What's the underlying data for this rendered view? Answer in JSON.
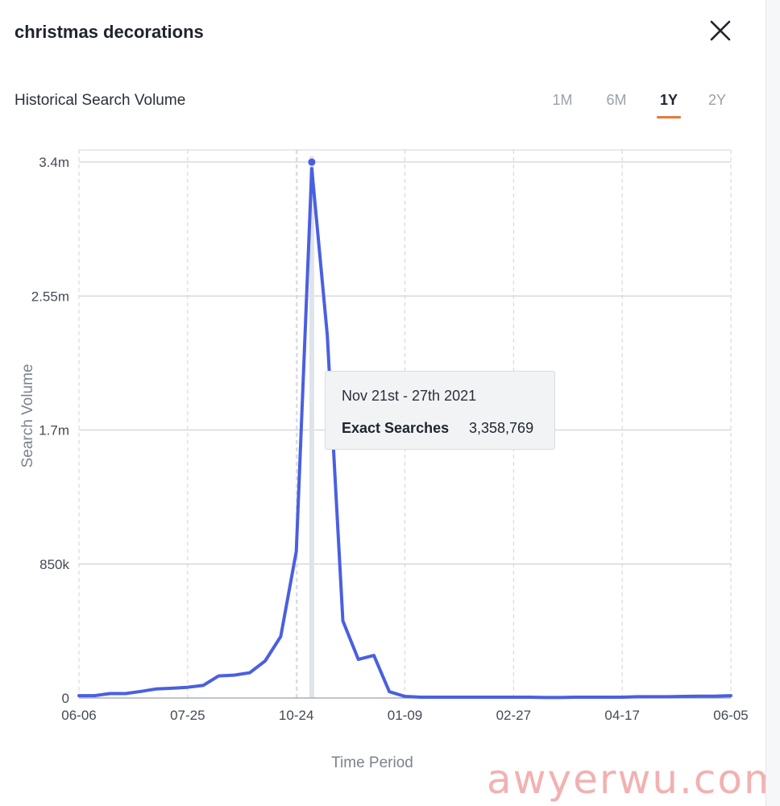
{
  "header": {
    "title": "christmas decorations",
    "close_icon": "close-icon"
  },
  "section": {
    "title": "Historical Search Volume"
  },
  "range_tabs": [
    {
      "label": "1M",
      "active": false
    },
    {
      "label": "6M",
      "active": false
    },
    {
      "label": "1Y",
      "active": true
    },
    {
      "label": "2Y",
      "active": false
    }
  ],
  "tooltip": {
    "date": "Nov 21st - 27th 2021",
    "label": "Exact Searches",
    "value": "3,358,769"
  },
  "watermark": "awyerwu.com",
  "colors": {
    "line": "#4a5fe0",
    "accent": "#e77a3a",
    "grid": "#d0d3d9",
    "hover_bar": "#dfe3ea"
  },
  "chart_data": {
    "type": "line",
    "xlabel": "Time Period",
    "ylabel": "Search Volume",
    "x_tick_labels": [
      "06-06",
      "07-25",
      "10-24",
      "01-09",
      "02-27",
      "04-17",
      "06-05"
    ],
    "x_tick_index": [
      0,
      7,
      14,
      21,
      28,
      35,
      42
    ],
    "y_tick_labels": [
      "0",
      "850k",
      "1.7m",
      "2.55m",
      "3.4m"
    ],
    "y_tick_values": [
      0,
      850000,
      1700000,
      2550000,
      3400000
    ],
    "ylim": [
      0,
      3400000
    ],
    "highlight_index": 15,
    "series": [
      {
        "name": "Exact Searches",
        "values": [
          15000,
          15000,
          28000,
          28000,
          42000,
          58000,
          62000,
          68000,
          80000,
          140000,
          145000,
          160000,
          235000,
          390000,
          930000,
          3358769,
          2300000,
          490000,
          245000,
          270000,
          40000,
          10000,
          5000,
          5000,
          5000,
          5000,
          5000,
          5000,
          5000,
          5000,
          3000,
          3000,
          5000,
          5000,
          5000,
          5000,
          8000,
          8000,
          8000,
          10000,
          12000,
          12000,
          15000
        ]
      }
    ]
  }
}
